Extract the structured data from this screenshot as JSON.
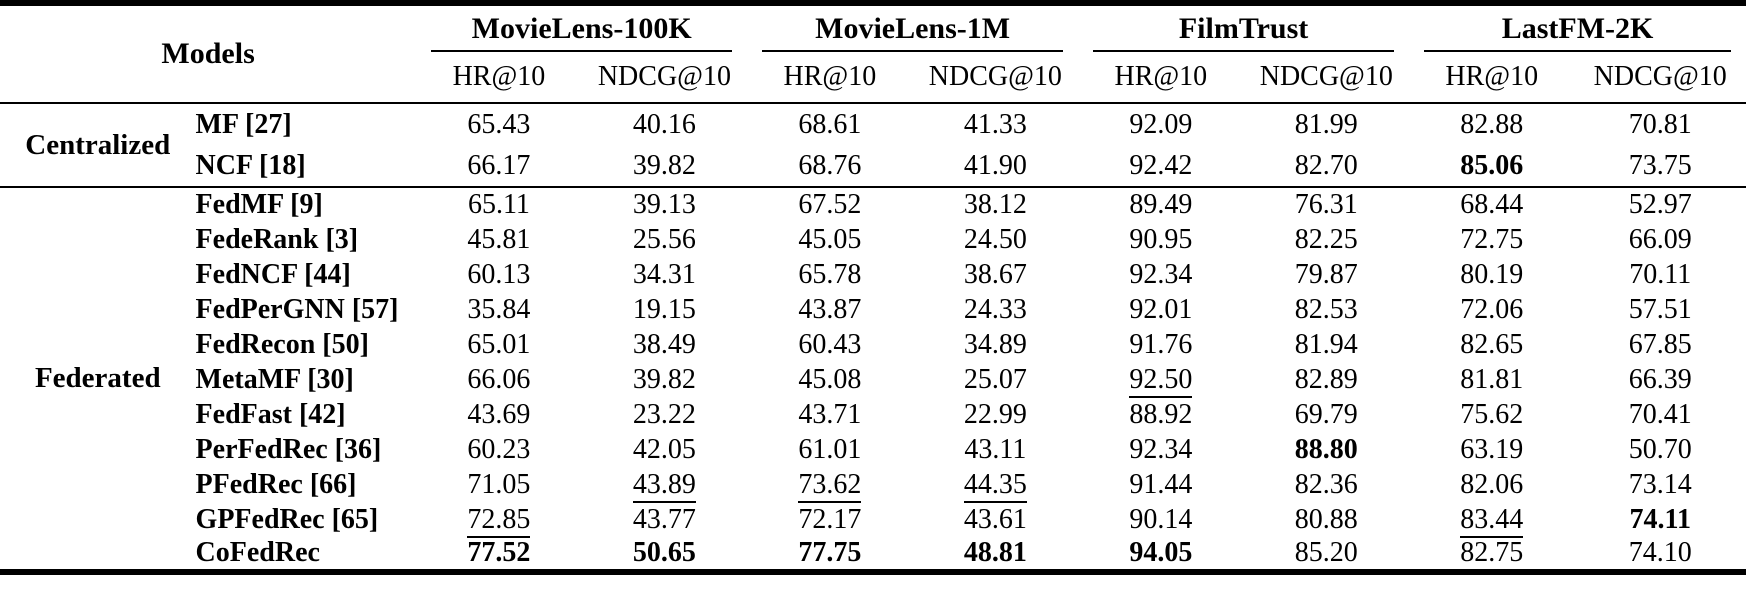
{
  "table": {
    "models_header": "Models",
    "groups": [
      {
        "label": "MovieLens-100K",
        "metrics": [
          "HR@10",
          "NDCG@10"
        ]
      },
      {
        "label": "MovieLens-1M",
        "metrics": [
          "HR@10",
          "NDCG@10"
        ]
      },
      {
        "label": "FilmTrust",
        "metrics": [
          "HR@10",
          "NDCG@10"
        ]
      },
      {
        "label": "LastFM-2K",
        "metrics": [
          "HR@10",
          "NDCG@10"
        ]
      }
    ],
    "style_legend": {
      "best": "bold",
      "second": "underline",
      "plain": "none"
    },
    "sections": [
      {
        "group": "Centralized",
        "rows": [
          {
            "model": "MF [27]",
            "values": [
              {
                "v": "65.43",
                "style": "plain"
              },
              {
                "v": "40.16",
                "style": "plain"
              },
              {
                "v": "68.61",
                "style": "plain"
              },
              {
                "v": "41.33",
                "style": "plain"
              },
              {
                "v": "92.09",
                "style": "plain"
              },
              {
                "v": "81.99",
                "style": "plain"
              },
              {
                "v": "82.88",
                "style": "plain"
              },
              {
                "v": "70.81",
                "style": "plain"
              }
            ]
          },
          {
            "model": "NCF [18]",
            "values": [
              {
                "v": "66.17",
                "style": "plain"
              },
              {
                "v": "39.82",
                "style": "plain"
              },
              {
                "v": "68.76",
                "style": "plain"
              },
              {
                "v": "41.90",
                "style": "plain"
              },
              {
                "v": "92.42",
                "style": "plain"
              },
              {
                "v": "82.70",
                "style": "plain"
              },
              {
                "v": "85.06",
                "style": "best"
              },
              {
                "v": "73.75",
                "style": "plain"
              }
            ]
          }
        ]
      },
      {
        "group": "Federated",
        "rows": [
          {
            "model": "FedMF [9]",
            "values": [
              {
                "v": "65.11",
                "style": "plain"
              },
              {
                "v": "39.13",
                "style": "plain"
              },
              {
                "v": "67.52",
                "style": "plain"
              },
              {
                "v": "38.12",
                "style": "plain"
              },
              {
                "v": "89.49",
                "style": "plain"
              },
              {
                "v": "76.31",
                "style": "plain"
              },
              {
                "v": "68.44",
                "style": "plain"
              },
              {
                "v": "52.97",
                "style": "plain"
              }
            ]
          },
          {
            "model": "FedeRank [3]",
            "values": [
              {
                "v": "45.81",
                "style": "plain"
              },
              {
                "v": "25.56",
                "style": "plain"
              },
              {
                "v": "45.05",
                "style": "plain"
              },
              {
                "v": "24.50",
                "style": "plain"
              },
              {
                "v": "90.95",
                "style": "plain"
              },
              {
                "v": "82.25",
                "style": "plain"
              },
              {
                "v": "72.75",
                "style": "plain"
              },
              {
                "v": "66.09",
                "style": "plain"
              }
            ]
          },
          {
            "model": "FedNCF [44]",
            "values": [
              {
                "v": "60.13",
                "style": "plain"
              },
              {
                "v": "34.31",
                "style": "plain"
              },
              {
                "v": "65.78",
                "style": "plain"
              },
              {
                "v": "38.67",
                "style": "plain"
              },
              {
                "v": "92.34",
                "style": "plain"
              },
              {
                "v": "79.87",
                "style": "plain"
              },
              {
                "v": "80.19",
                "style": "plain"
              },
              {
                "v": "70.11",
                "style": "plain"
              }
            ]
          },
          {
            "model": "FedPerGNN [57]",
            "values": [
              {
                "v": "35.84",
                "style": "plain"
              },
              {
                "v": "19.15",
                "style": "plain"
              },
              {
                "v": "43.87",
                "style": "plain"
              },
              {
                "v": "24.33",
                "style": "plain"
              },
              {
                "v": "92.01",
                "style": "plain"
              },
              {
                "v": "82.53",
                "style": "plain"
              },
              {
                "v": "72.06",
                "style": "plain"
              },
              {
                "v": "57.51",
                "style": "plain"
              }
            ]
          },
          {
            "model": "FedRecon [50]",
            "values": [
              {
                "v": "65.01",
                "style": "plain"
              },
              {
                "v": "38.49",
                "style": "plain"
              },
              {
                "v": "60.43",
                "style": "plain"
              },
              {
                "v": "34.89",
                "style": "plain"
              },
              {
                "v": "91.76",
                "style": "plain"
              },
              {
                "v": "81.94",
                "style": "plain"
              },
              {
                "v": "82.65",
                "style": "plain"
              },
              {
                "v": "67.85",
                "style": "plain"
              }
            ]
          },
          {
            "model": "MetaMF [30]",
            "values": [
              {
                "v": "66.06",
                "style": "plain"
              },
              {
                "v": "39.82",
                "style": "plain"
              },
              {
                "v": "45.08",
                "style": "plain"
              },
              {
                "v": "25.07",
                "style": "plain"
              },
              {
                "v": "92.50",
                "style": "second"
              },
              {
                "v": "82.89",
                "style": "plain"
              },
              {
                "v": "81.81",
                "style": "plain"
              },
              {
                "v": "66.39",
                "style": "plain"
              }
            ]
          },
          {
            "model": "FedFast [42]",
            "values": [
              {
                "v": "43.69",
                "style": "plain"
              },
              {
                "v": "23.22",
                "style": "plain"
              },
              {
                "v": "43.71",
                "style": "plain"
              },
              {
                "v": "22.99",
                "style": "plain"
              },
              {
                "v": "88.92",
                "style": "plain"
              },
              {
                "v": "69.79",
                "style": "plain"
              },
              {
                "v": "75.62",
                "style": "plain"
              },
              {
                "v": "70.41",
                "style": "plain"
              }
            ]
          },
          {
            "model": "PerFedRec [36]",
            "values": [
              {
                "v": "60.23",
                "style": "plain"
              },
              {
                "v": "42.05",
                "style": "plain"
              },
              {
                "v": "61.01",
                "style": "plain"
              },
              {
                "v": "43.11",
                "style": "plain"
              },
              {
                "v": "92.34",
                "style": "plain"
              },
              {
                "v": "88.80",
                "style": "best"
              },
              {
                "v": "63.19",
                "style": "plain"
              },
              {
                "v": "50.70",
                "style": "plain"
              }
            ]
          },
          {
            "model": "PFedRec [66]",
            "values": [
              {
                "v": "71.05",
                "style": "plain"
              },
              {
                "v": "43.89",
                "style": "second"
              },
              {
                "v": "73.62",
                "style": "second"
              },
              {
                "v": "44.35",
                "style": "second"
              },
              {
                "v": "91.44",
                "style": "plain"
              },
              {
                "v": "82.36",
                "style": "plain"
              },
              {
                "v": "82.06",
                "style": "plain"
              },
              {
                "v": "73.14",
                "style": "plain"
              }
            ]
          },
          {
            "model": "GPFedRec [65]",
            "values": [
              {
                "v": "72.85",
                "style": "second"
              },
              {
                "v": "43.77",
                "style": "plain"
              },
              {
                "v": "72.17",
                "style": "plain"
              },
              {
                "v": "43.61",
                "style": "plain"
              },
              {
                "v": "90.14",
                "style": "plain"
              },
              {
                "v": "80.88",
                "style": "plain"
              },
              {
                "v": "83.44",
                "style": "second"
              },
              {
                "v": "74.11",
                "style": "best"
              }
            ]
          },
          {
            "model": "CoFedRec",
            "values": [
              {
                "v": "77.52",
                "style": "best"
              },
              {
                "v": "50.65",
                "style": "best"
              },
              {
                "v": "77.75",
                "style": "best"
              },
              {
                "v": "48.81",
                "style": "best"
              },
              {
                "v": "94.05",
                "style": "best"
              },
              {
                "v": "85.20",
                "style": "second"
              },
              {
                "v": "82.75",
                "style": "plain"
              },
              {
                "v": "74.10",
                "style": "second"
              }
            ]
          }
        ]
      }
    ]
  }
}
